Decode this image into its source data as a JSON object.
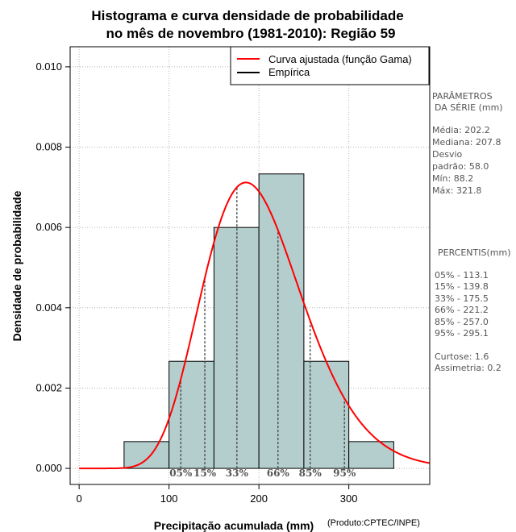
{
  "chart_data": {
    "type": "bar",
    "title_lines": [
      "Histograma e curva densidade de probabilidade",
      "no mês de novembro (1981-2010): Região 59"
    ],
    "xlabel": "Precipitação acumulada (mm)",
    "ylabel": "Densidade de probabilidade",
    "credit": "(Produto:CPTEC/INPE)",
    "xlim": [
      -10,
      390
    ],
    "ylim": [
      -0.0004,
      0.0105
    ],
    "x_ticks": [
      0,
      100,
      200,
      300
    ],
    "y_ticks": [
      0.0,
      0.002,
      0.004,
      0.006,
      0.008,
      0.01
    ],
    "y_tick_labels": [
      "0.000",
      "0.002",
      "0.004",
      "0.006",
      "0.008",
      "0.010"
    ],
    "grid": true,
    "bins": [
      {
        "start": 50,
        "end": 100,
        "density": 0.000667
      },
      {
        "start": 100,
        "end": 150,
        "density": 0.002667
      },
      {
        "start": 150,
        "end": 200,
        "density": 0.006
      },
      {
        "start": 200,
        "end": 250,
        "density": 0.007333
      },
      {
        "start": 250,
        "end": 300,
        "density": 0.002667
      },
      {
        "start": 300,
        "end": 350,
        "density": 0.000667
      }
    ],
    "bar_color": "#b4cdcd",
    "curve": {
      "name": "Curva ajustada (função Gama)",
      "color": "#ff0000",
      "shape": 12.13,
      "scale": 16.67
    },
    "empirical_name": "Empírica",
    "percentiles": [
      {
        "label": "05%",
        "value": 113.1
      },
      {
        "label": "15%",
        "value": 139.8
      },
      {
        "label": "33%",
        "value": 175.5
      },
      {
        "label": "66%",
        "value": 221.2
      },
      {
        "label": "85%",
        "value": 257.0
      },
      {
        "label": "95%",
        "value": 295.1
      }
    ],
    "legend_position": "top-right"
  },
  "side_panel": {
    "params_header_1": "PARÂMETROS",
    "params_header_2": "DA SÉRIE (mm)",
    "media": "Média:  202.2",
    "mediana": "Mediana:  207.8",
    "desvio_1": "Desvio",
    "desvio_2": "padrão:  58.0",
    "min": "Mín:  88.2",
    "max": "Máx:  321.8",
    "percentis_header": "PERCENTIS(mm)",
    "p05": "05% -  113.1",
    "p15": "15% -  139.8",
    "p33": "33% -  175.5",
    "p66": "66% -  221.2",
    "p85": "85% -  257.0",
    "p95": "95% -  295.1",
    "curtose": "Curtose:  1.6",
    "assimetria": "Assimetria:  0.2"
  }
}
